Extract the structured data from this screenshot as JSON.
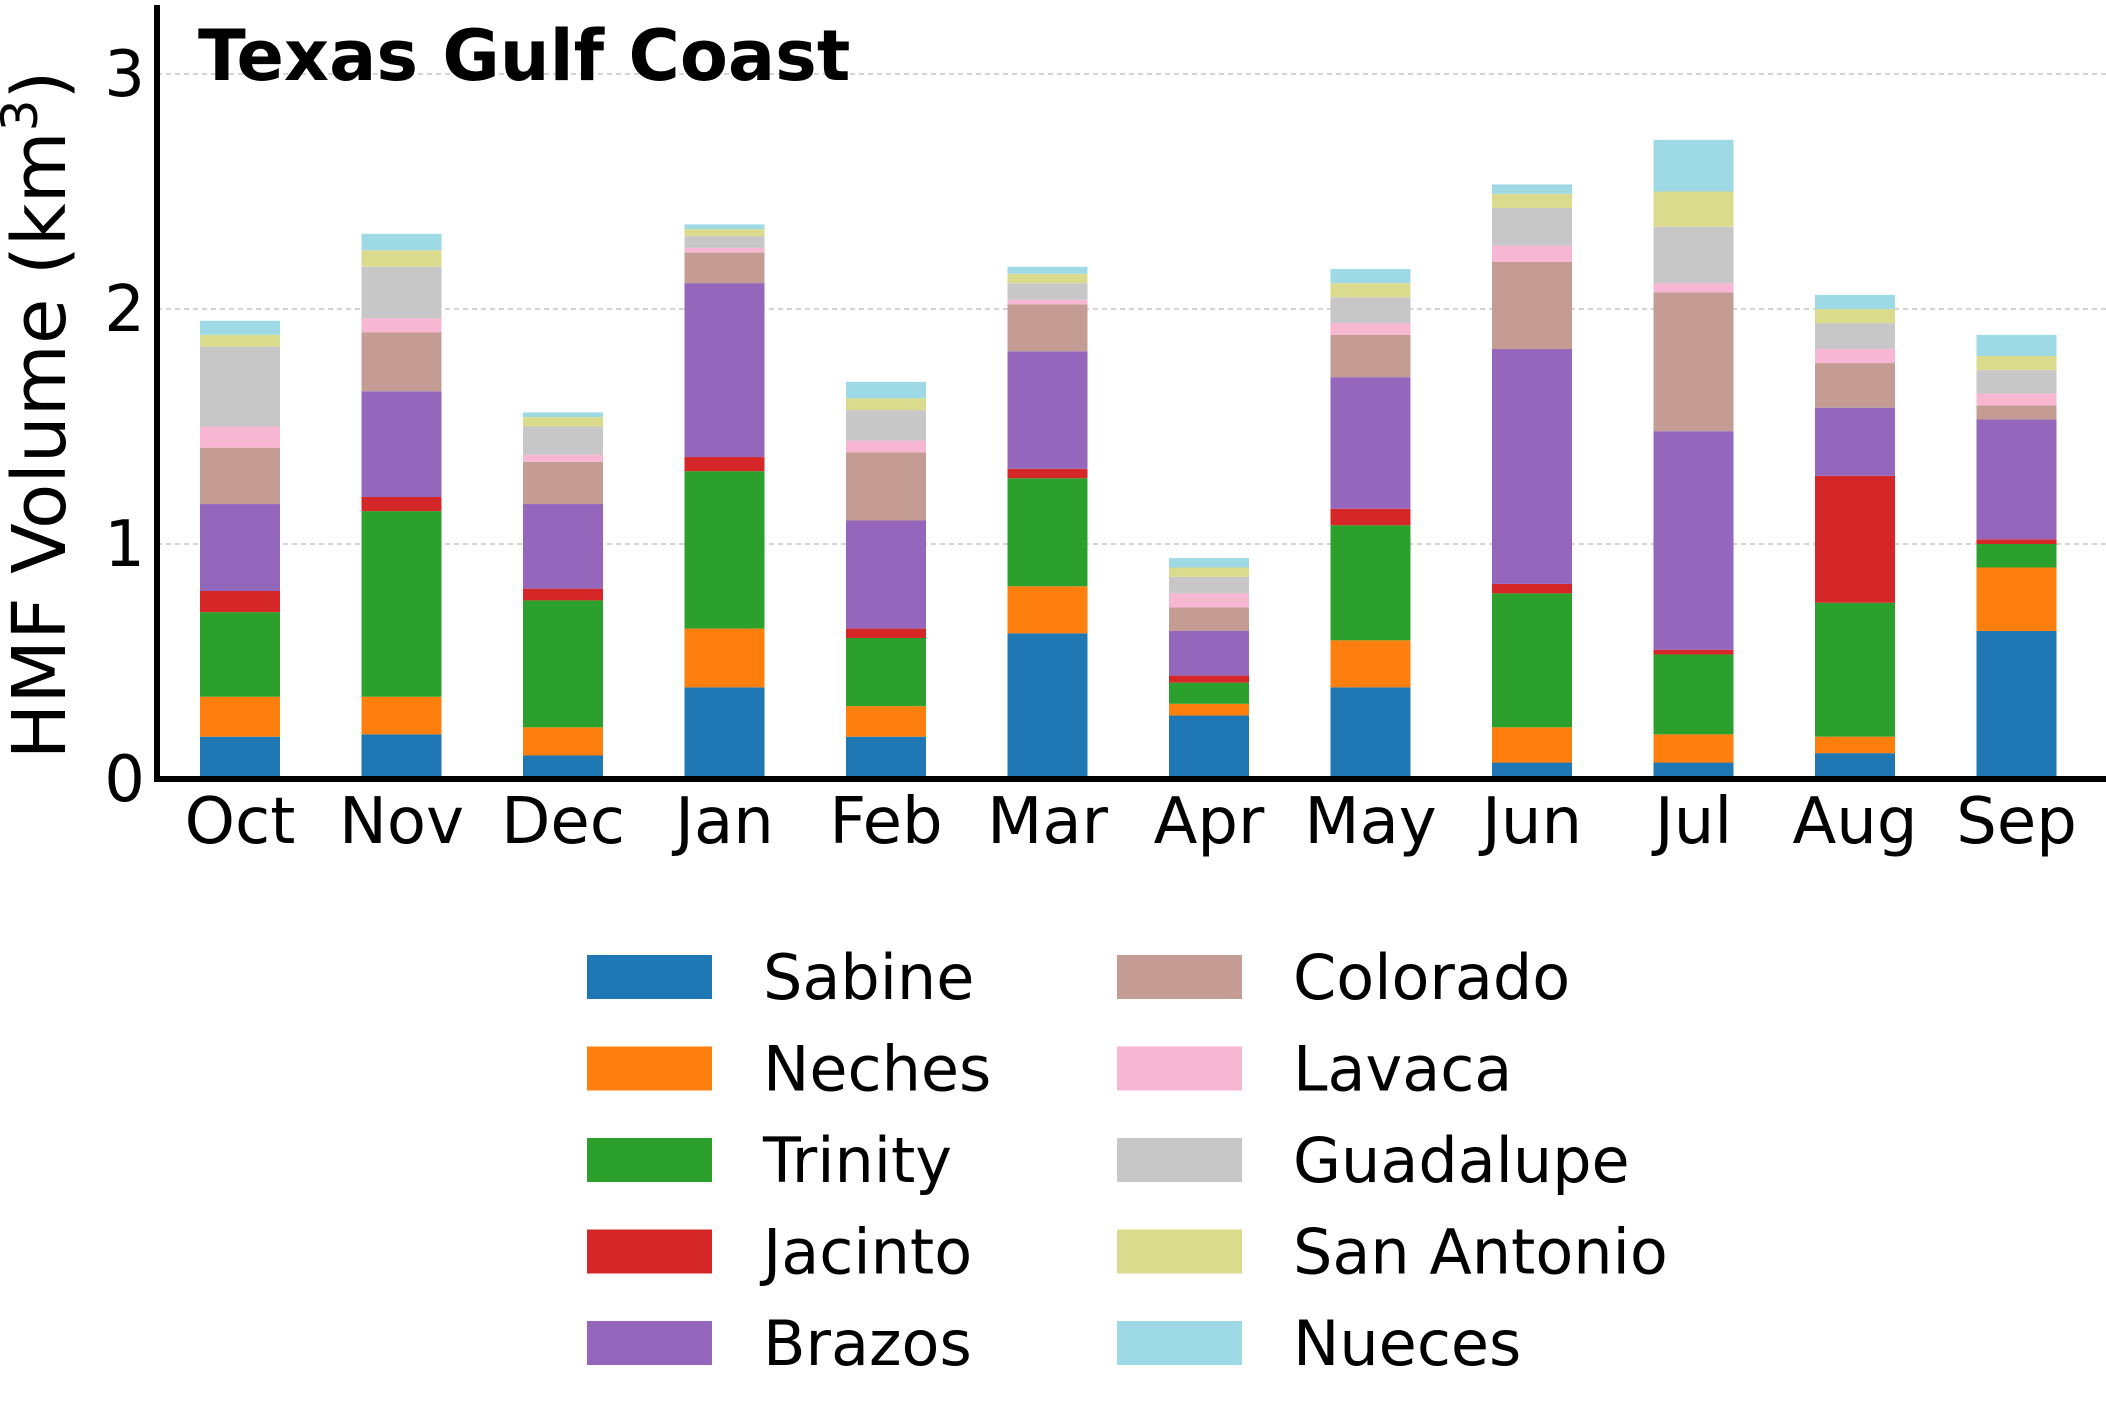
{
  "chart_data": {
    "type": "bar",
    "stacked": true,
    "title": "Texas Gulf Coast",
    "ylabel_main": "HMF Volume (km",
    "ylabel_sup": "3",
    "ylabel_close": ")",
    "xlabel": "",
    "ylim": [
      0,
      3.3
    ],
    "yticks": [
      0,
      1,
      2,
      3
    ],
    "grid": "horizontal dashed",
    "legend_placement": "bottom-center, two columns",
    "categories": [
      "Oct",
      "Nov",
      "Dec",
      "Jan",
      "Feb",
      "Mar",
      "Apr",
      "May",
      "Jun",
      "Jul",
      "Aug",
      "Sep"
    ],
    "series": [
      {
        "name": "Sabine",
        "color": "#1f77b4",
        "values": [
          0.18,
          0.19,
          0.1,
          0.39,
          0.18,
          0.62,
          0.27,
          0.39,
          0.07,
          0.07,
          0.11,
          0.63
        ]
      },
      {
        "name": "Neches",
        "color": "#ff7f0e",
        "values": [
          0.17,
          0.16,
          0.12,
          0.25,
          0.13,
          0.2,
          0.05,
          0.2,
          0.15,
          0.12,
          0.07,
          0.27
        ]
      },
      {
        "name": "Trinity",
        "color": "#2ca02c",
        "values": [
          0.36,
          0.79,
          0.54,
          0.67,
          0.29,
          0.46,
          0.09,
          0.49,
          0.57,
          0.34,
          0.57,
          0.1
        ]
      },
      {
        "name": "Jacinto",
        "color": "#d62728",
        "values": [
          0.09,
          0.06,
          0.05,
          0.06,
          0.04,
          0.04,
          0.03,
          0.07,
          0.04,
          0.02,
          0.54,
          0.02
        ]
      },
      {
        "name": "Brazos",
        "color": "#9467bd",
        "values": [
          0.37,
          0.45,
          0.36,
          0.74,
          0.46,
          0.5,
          0.19,
          0.56,
          1.0,
          0.93,
          0.29,
          0.51
        ]
      },
      {
        "name": "Colorado",
        "color": "#c49c94",
        "values": [
          0.24,
          0.25,
          0.18,
          0.13,
          0.29,
          0.2,
          0.1,
          0.18,
          0.37,
          0.59,
          0.19,
          0.06
        ]
      },
      {
        "name": "Lavaca",
        "color": "#f7b6d2",
        "values": [
          0.09,
          0.06,
          0.03,
          0.02,
          0.05,
          0.02,
          0.06,
          0.05,
          0.07,
          0.04,
          0.06,
          0.05
        ]
      },
      {
        "name": "Guadalupe",
        "color": "#c7c7c7",
        "values": [
          0.34,
          0.22,
          0.12,
          0.05,
          0.13,
          0.07,
          0.07,
          0.11,
          0.16,
          0.24,
          0.11,
          0.1
        ]
      },
      {
        "name": "San Antonio",
        "color": "#dbdb8d",
        "values": [
          0.05,
          0.07,
          0.04,
          0.03,
          0.05,
          0.04,
          0.04,
          0.06,
          0.06,
          0.15,
          0.06,
          0.06
        ]
      },
      {
        "name": "Nueces",
        "color": "#9edae5",
        "values": [
          0.06,
          0.07,
          0.02,
          0.02,
          0.07,
          0.03,
          0.04,
          0.06,
          0.04,
          0.22,
          0.06,
          0.09
        ]
      }
    ]
  }
}
